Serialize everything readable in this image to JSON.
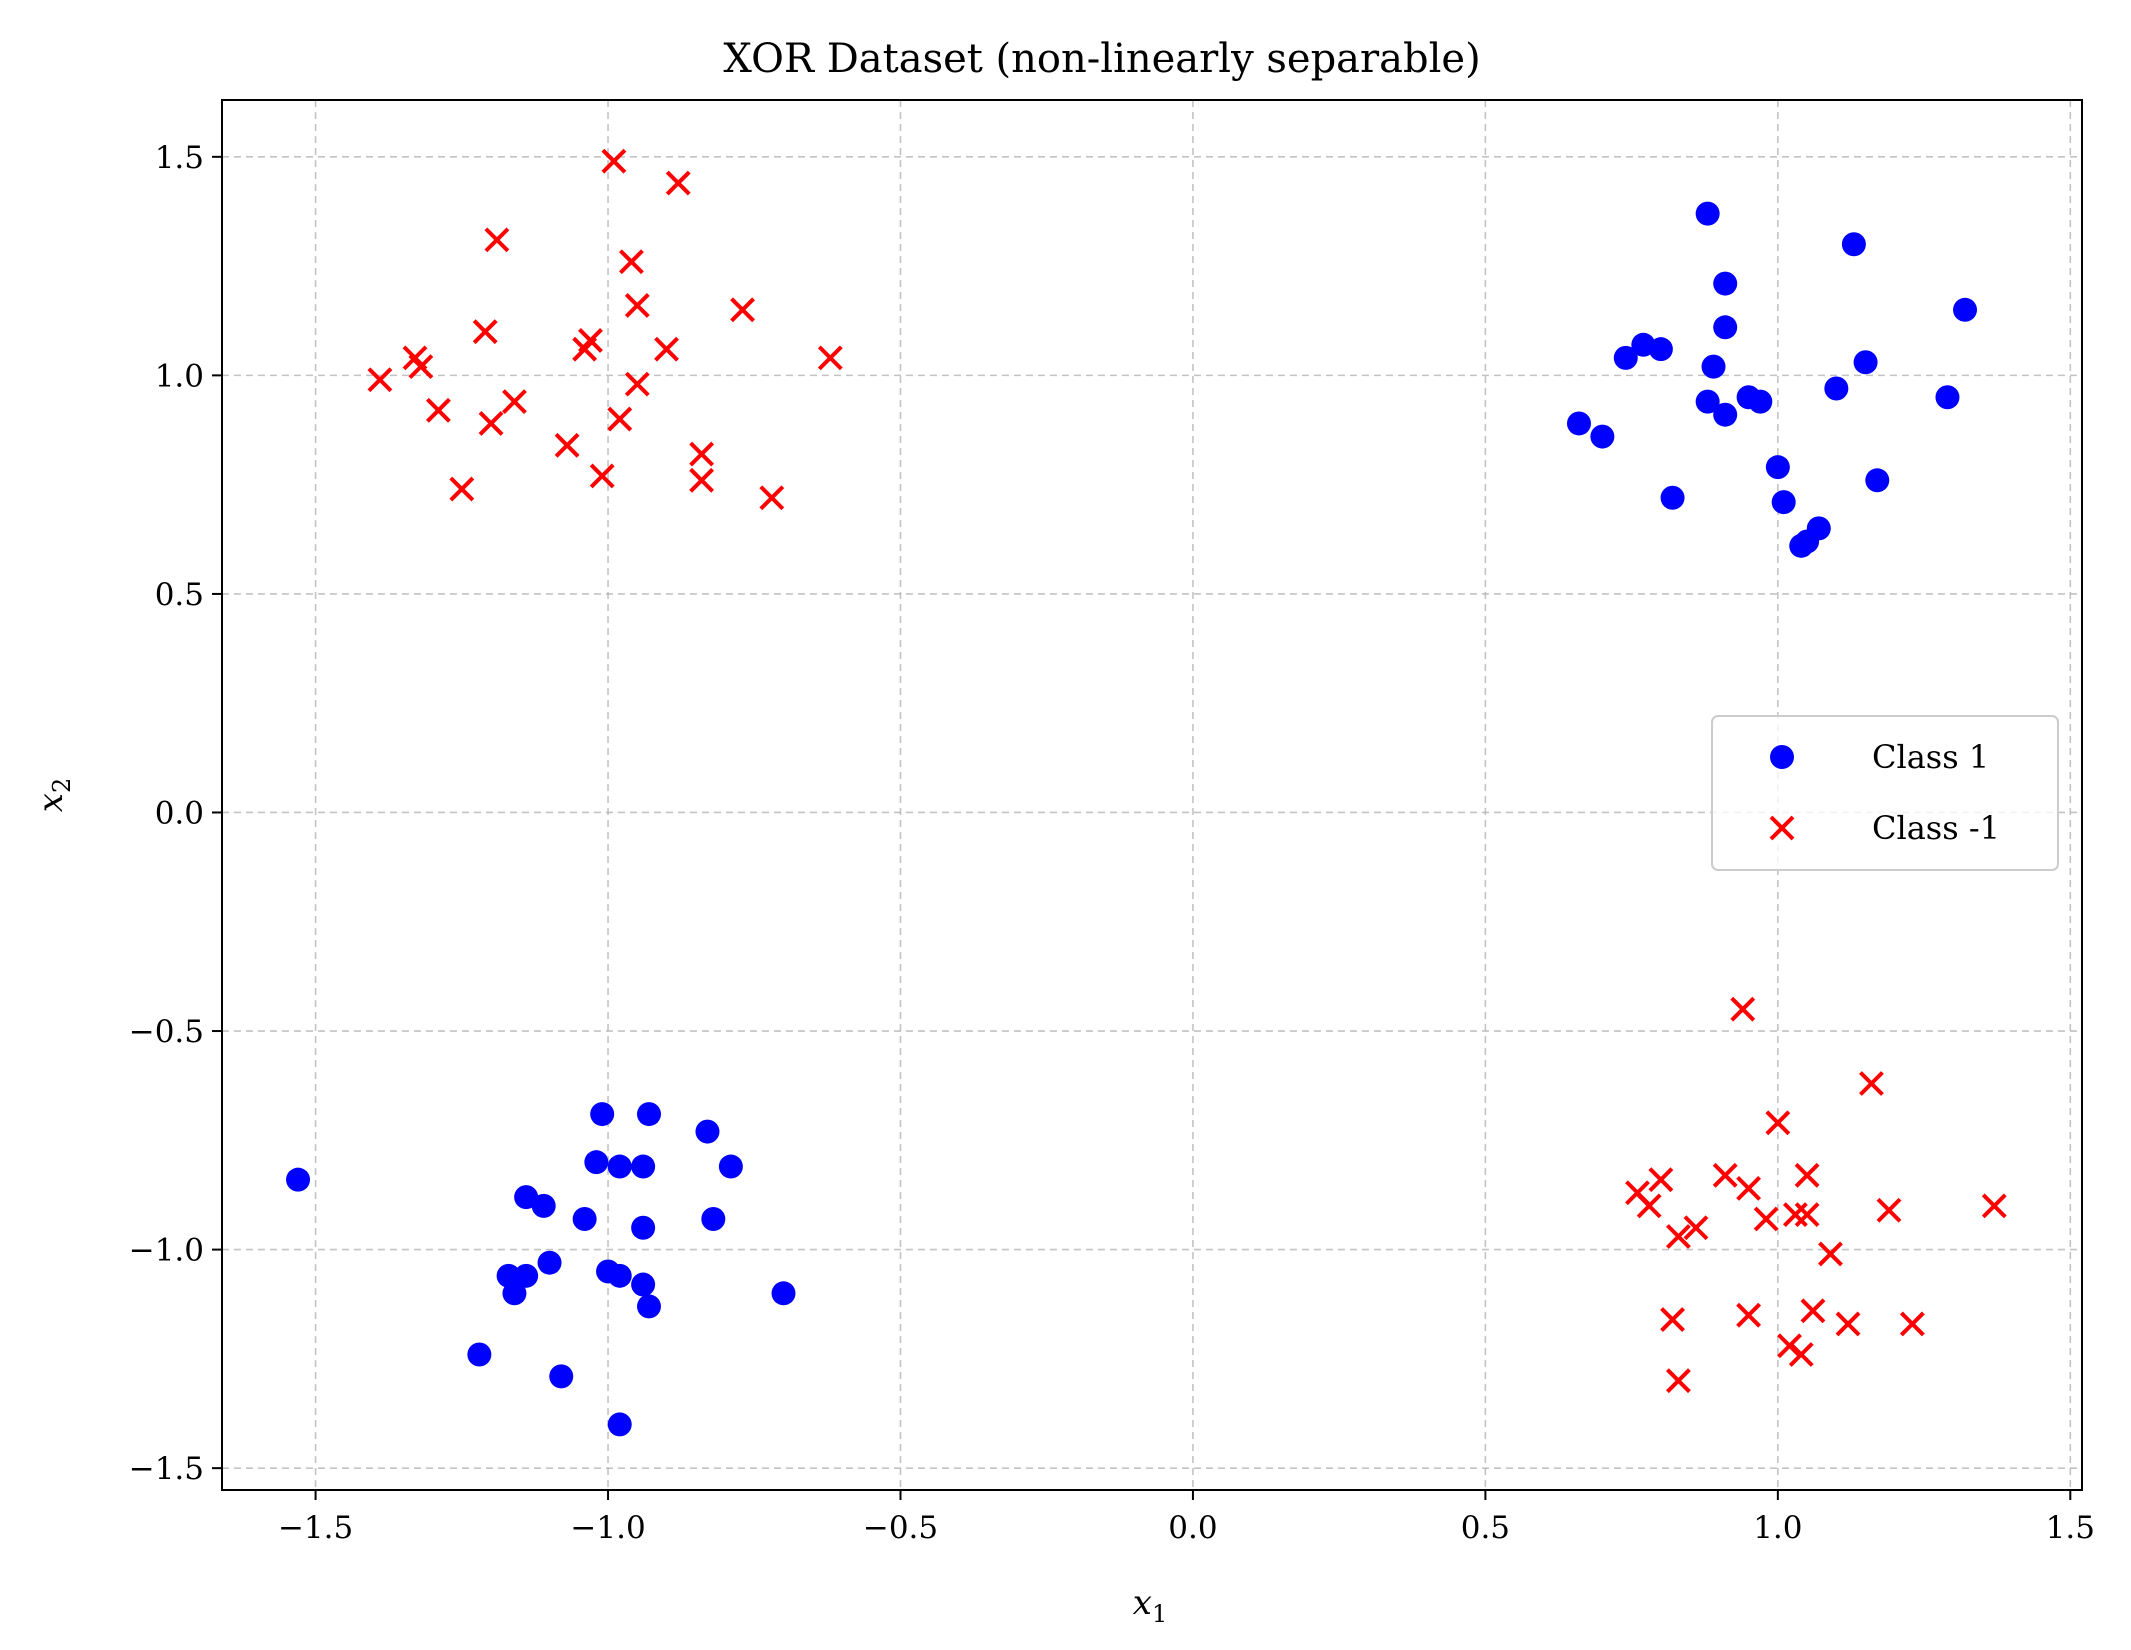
{
  "chart_data": {
    "type": "scatter",
    "title": "XOR Dataset (non-linearly separable)",
    "xlabel": "x",
    "xlabel_sub": "1",
    "ylabel": "x",
    "ylabel_sub": "2",
    "xlim": [
      -1.66,
      1.52
    ],
    "ylim": [
      -1.55,
      1.63
    ],
    "xticks": [
      -1.5,
      -1.0,
      -0.5,
      0.0,
      0.5,
      1.0,
      1.5
    ],
    "xtick_labels": [
      "−1.5",
      "−1.0",
      "−0.5",
      "0.0",
      "0.5",
      "1.0",
      "1.5"
    ],
    "yticks": [
      -1.5,
      -1.0,
      -0.5,
      0.0,
      0.5,
      1.0,
      1.5
    ],
    "ytick_labels": [
      "−1.5",
      "−1.0",
      "−0.5",
      "0.0",
      "0.5",
      "1.0",
      "1.5"
    ],
    "grid": true,
    "legend_position": "center-right",
    "series": [
      {
        "name": "Class 1",
        "marker": "circle",
        "color": "#0000ff",
        "points": [
          [
            0.88,
            1.37
          ],
          [
            1.13,
            1.3
          ],
          [
            0.91,
            1.21
          ],
          [
            1.32,
            1.15
          ],
          [
            0.91,
            1.11
          ],
          [
            0.77,
            1.07
          ],
          [
            0.8,
            1.06
          ],
          [
            0.74,
            1.04
          ],
          [
            1.15,
            1.03
          ],
          [
            0.89,
            1.02
          ],
          [
            1.1,
            0.97
          ],
          [
            1.29,
            0.95
          ],
          [
            0.95,
            0.95
          ],
          [
            0.88,
            0.94
          ],
          [
            0.97,
            0.94
          ],
          [
            0.91,
            0.91
          ],
          [
            0.66,
            0.89
          ],
          [
            0.7,
            0.86
          ],
          [
            1.0,
            0.79
          ],
          [
            1.17,
            0.76
          ],
          [
            0.82,
            0.72
          ],
          [
            1.01,
            0.71
          ],
          [
            1.07,
            0.65
          ],
          [
            1.05,
            0.62
          ],
          [
            1.04,
            0.61
          ],
          [
            -1.01,
            -0.69
          ],
          [
            -0.93,
            -0.69
          ],
          [
            -0.83,
            -0.73
          ],
          [
            -1.02,
            -0.8
          ],
          [
            -0.98,
            -0.81
          ],
          [
            -0.94,
            -0.81
          ],
          [
            -0.79,
            -0.81
          ],
          [
            -1.53,
            -0.84
          ],
          [
            -1.14,
            -0.88
          ],
          [
            -1.11,
            -0.9
          ],
          [
            -1.04,
            -0.93
          ],
          [
            -0.82,
            -0.93
          ],
          [
            -0.94,
            -0.95
          ],
          [
            -1.1,
            -1.03
          ],
          [
            -1.0,
            -1.05
          ],
          [
            -0.98,
            -1.06
          ],
          [
            -1.17,
            -1.06
          ],
          [
            -1.14,
            -1.06
          ],
          [
            -0.94,
            -1.08
          ],
          [
            -1.16,
            -1.1
          ],
          [
            -0.7,
            -1.1
          ],
          [
            -0.93,
            -1.13
          ],
          [
            -1.22,
            -1.24
          ],
          [
            -1.08,
            -1.29
          ],
          [
            -0.98,
            -1.4
          ]
        ]
      },
      {
        "name": "Class -1",
        "marker": "x",
        "color": "#ff0000",
        "points": [
          [
            -0.99,
            1.49
          ],
          [
            -0.88,
            1.44
          ],
          [
            -1.19,
            1.31
          ],
          [
            -0.96,
            1.26
          ],
          [
            -0.95,
            1.16
          ],
          [
            -0.77,
            1.15
          ],
          [
            -1.21,
            1.1
          ],
          [
            -1.03,
            1.08
          ],
          [
            -1.04,
            1.06
          ],
          [
            -0.9,
            1.06
          ],
          [
            -1.33,
            1.04
          ],
          [
            -1.32,
            1.02
          ],
          [
            -0.62,
            1.04
          ],
          [
            -1.39,
            0.99
          ],
          [
            -0.95,
            0.98
          ],
          [
            -1.16,
            0.94
          ],
          [
            -1.29,
            0.92
          ],
          [
            -0.98,
            0.9
          ],
          [
            -1.2,
            0.89
          ],
          [
            -1.07,
            0.84
          ],
          [
            -0.84,
            0.82
          ],
          [
            -1.01,
            0.77
          ],
          [
            -0.84,
            0.76
          ],
          [
            -1.25,
            0.74
          ],
          [
            -0.72,
            0.72
          ],
          [
            0.94,
            -0.45
          ],
          [
            1.16,
            -0.62
          ],
          [
            1.0,
            -0.71
          ],
          [
            0.91,
            -0.83
          ],
          [
            1.05,
            -0.83
          ],
          [
            0.8,
            -0.84
          ],
          [
            0.95,
            -0.86
          ],
          [
            0.76,
            -0.87
          ],
          [
            0.78,
            -0.9
          ],
          [
            1.37,
            -0.9
          ],
          [
            1.19,
            -0.91
          ],
          [
            1.03,
            -0.92
          ],
          [
            1.05,
            -0.92
          ],
          [
            0.98,
            -0.93
          ],
          [
            0.86,
            -0.95
          ],
          [
            0.83,
            -0.97
          ],
          [
            1.09,
            -1.01
          ],
          [
            1.06,
            -1.14
          ],
          [
            0.95,
            -1.15
          ],
          [
            0.82,
            -1.16
          ],
          [
            1.12,
            -1.17
          ],
          [
            1.23,
            -1.17
          ],
          [
            1.02,
            -1.22
          ],
          [
            1.04,
            -1.24
          ],
          [
            0.83,
            -1.3
          ]
        ]
      }
    ]
  }
}
